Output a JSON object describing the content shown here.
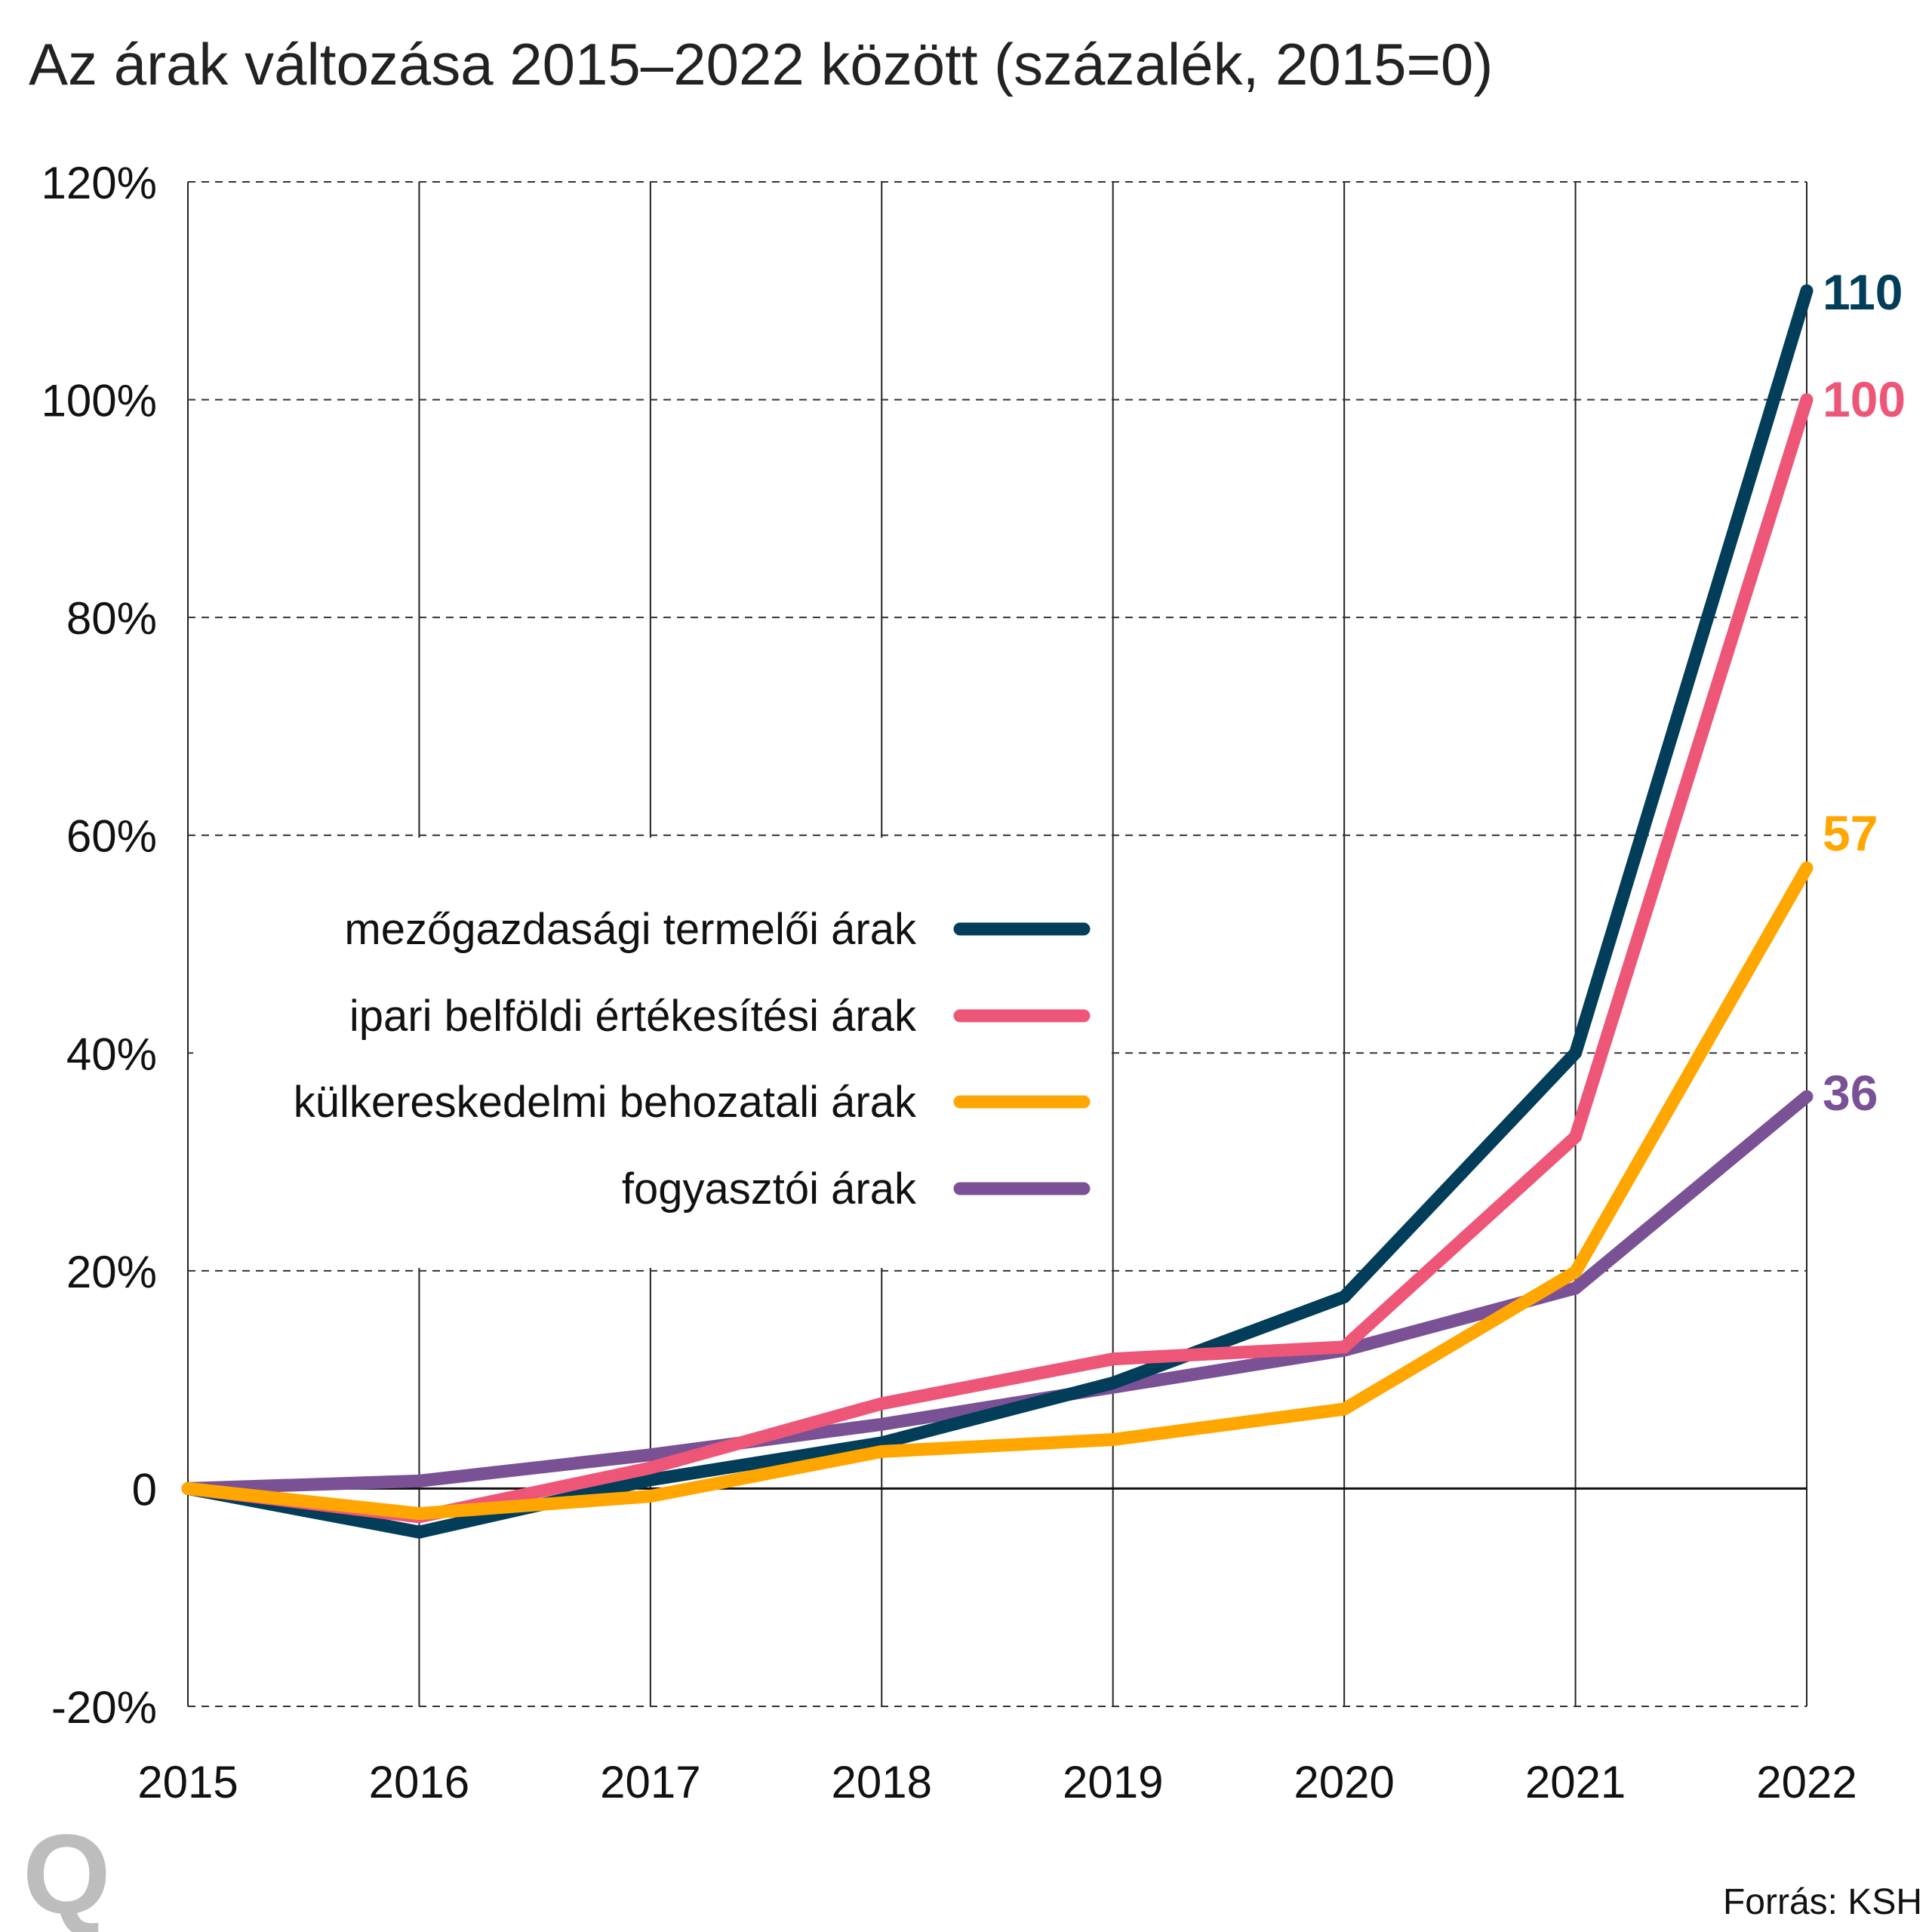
{
  "chart_data": {
    "type": "line",
    "title": "Az árak változása 2015–2022 között (százalék, 2015=0)",
    "xlabel": "",
    "ylabel": "",
    "categories": [
      "2015",
      "2016",
      "2017",
      "2018",
      "2019",
      "2020",
      "2021",
      "2022"
    ],
    "ylim": [
      -20,
      120
    ],
    "yticks": [
      -20,
      0,
      20,
      40,
      60,
      80,
      100,
      120
    ],
    "ytick_labels": [
      "-20%",
      "0",
      "20%",
      "40%",
      "60%",
      "80%",
      "100%",
      "120%"
    ],
    "grid": true,
    "legend_position": "center-left",
    "series": [
      {
        "name": "mezőgazdasági termelői árak",
        "color": "#023d5a",
        "values": [
          0,
          -4.0,
          0.8,
          4.2,
          9.7,
          17.6,
          40,
          110
        ],
        "end_label": "110"
      },
      {
        "name": "ipari belföldi értékesítési árak",
        "color": "#ee5678",
        "values": [
          0,
          -2.6,
          1.9,
          7.8,
          11.9,
          13,
          32.3,
          100
        ],
        "end_label": "100"
      },
      {
        "name": "külkereskedelmi behozatali árak",
        "color": "#ffa600",
        "values": [
          0,
          -2.3,
          -0.7,
          3.4,
          4.5,
          7.3,
          19.9,
          57
        ],
        "end_label": "57"
      },
      {
        "name": "fogyasztói árak",
        "color": "#7a5195",
        "values": [
          0,
          0.7,
          3.1,
          5.9,
          9.3,
          12.7,
          18.4,
          36
        ],
        "end_label": "36"
      }
    ]
  },
  "source": "Forrás: KSH",
  "logo": "Q"
}
